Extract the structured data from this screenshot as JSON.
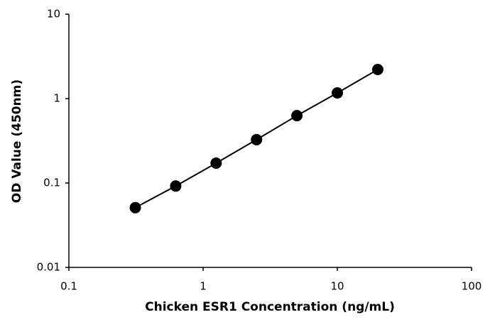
{
  "chart_data": {
    "type": "scatter",
    "x_label": "Chicken ESR1 Concentration (ng/mL)",
    "y_label": "OD Value (450nm)",
    "x": [
      0.3125,
      0.625,
      1.25,
      2.5,
      5,
      10,
      20
    ],
    "values": [
      0.051,
      0.092,
      0.172,
      0.326,
      0.628,
      1.167,
      2.21
    ],
    "color": "#000000",
    "line": true,
    "xscale": "log",
    "yscale": "log",
    "xlim": [
      0.1,
      100
    ],
    "xticks": [
      0.1,
      1,
      10,
      100
    ],
    "ylim": [
      0.01,
      10
    ],
    "yticks": [
      0.01,
      0.1,
      1,
      10
    ]
  }
}
